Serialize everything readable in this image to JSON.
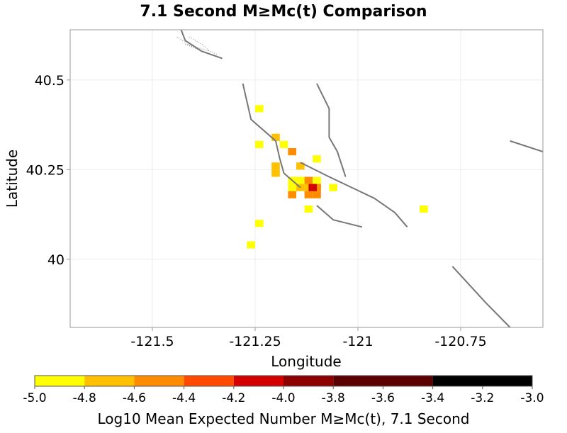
{
  "chart_data": {
    "type": "heatmap",
    "title": "7.1 Second M≥Mc(t) Comparison",
    "xlabel": "Longitude",
    "ylabel": "Latitude",
    "xlim": [
      -121.7,
      -120.55
    ],
    "ylim": [
      39.81,
      40.64
    ],
    "x_ticks": [
      -121.5,
      -121.25,
      -121,
      -120.75
    ],
    "x_tick_labels": [
      "-121.5",
      "-121.25",
      "-121",
      "-120.75"
    ],
    "y_ticks": [
      40,
      40.25,
      40.5
    ],
    "y_tick_labels": [
      "40",
      "40.25",
      "40.5"
    ],
    "grid": true,
    "cell_size_deg": 0.02,
    "colorbar": {
      "label": "Log10 Mean Expected Number M≥Mc(t), 7.1 Second",
      "min": -5.0,
      "max": -3.0,
      "ticks": [
        "-5.0",
        "-4.8",
        "-4.6",
        "-4.4",
        "-4.2",
        "-4.0",
        "-3.8",
        "-3.6",
        "-3.4",
        "-3.2",
        "-3.0"
      ],
      "colors": [
        "#ffff00",
        "#ffc000",
        "#ff8c00",
        "#ff4a00",
        "#d20000",
        "#8c0000",
        "#5a0000",
        "#000000"
      ],
      "bins": [
        [
          -5.0,
          -4.8
        ],
        [
          -4.8,
          -4.6
        ],
        [
          -4.6,
          -4.4
        ],
        [
          -4.4,
          -4.2
        ],
        [
          -4.2,
          -4.0
        ],
        [
          -4.0,
          -3.8
        ],
        [
          -3.8,
          -3.4
        ],
        [
          -3.4,
          -3.0
        ]
      ]
    },
    "cells": [
      {
        "lon": -121.24,
        "lat": 40.42,
        "value": -4.9
      },
      {
        "lon": -121.24,
        "lat": 40.32,
        "value": -4.9
      },
      {
        "lon": -121.2,
        "lat": 40.34,
        "value": -4.8
      },
      {
        "lon": -121.18,
        "lat": 40.32,
        "value": -4.9
      },
      {
        "lon": -121.16,
        "lat": 40.3,
        "value": -4.6
      },
      {
        "lon": -121.2,
        "lat": 40.26,
        "value": -4.8
      },
      {
        "lon": -121.2,
        "lat": 40.24,
        "value": -4.8
      },
      {
        "lon": -121.14,
        "lat": 40.26,
        "value": -4.7
      },
      {
        "lon": -121.1,
        "lat": 40.28,
        "value": -4.9
      },
      {
        "lon": -121.16,
        "lat": 40.22,
        "value": -4.9
      },
      {
        "lon": -121.14,
        "lat": 40.22,
        "value": -4.9
      },
      {
        "lon": -121.12,
        "lat": 40.22,
        "value": -4.5
      },
      {
        "lon": -121.1,
        "lat": 40.22,
        "value": -4.9
      },
      {
        "lon": -121.16,
        "lat": 40.2,
        "value": -4.9
      },
      {
        "lon": -121.14,
        "lat": 40.2,
        "value": -4.8
      },
      {
        "lon": -121.12,
        "lat": 40.2,
        "value": -4.8
      },
      {
        "lon": -121.1,
        "lat": 40.2,
        "value": -4.5
      },
      {
        "lon": -121.16,
        "lat": 40.18,
        "value": -4.6
      },
      {
        "lon": -121.12,
        "lat": 40.18,
        "value": -4.6
      },
      {
        "lon": -121.1,
        "lat": 40.2,
        "value": -4.6
      },
      {
        "lon": -121.1,
        "lat": 40.18,
        "value": -4.6
      },
      {
        "lon": -121.11,
        "lat": 40.2,
        "value": -4.1
      },
      {
        "lon": -121.12,
        "lat": 40.14,
        "value": -4.9
      },
      {
        "lon": -121.06,
        "lat": 40.2,
        "value": -4.9
      },
      {
        "lon": -120.84,
        "lat": 40.14,
        "value": -4.9
      },
      {
        "lon": -121.24,
        "lat": 40.1,
        "value": -4.9
      },
      {
        "lon": -121.26,
        "lat": 40.04,
        "value": -4.9
      }
    ],
    "faults": [
      [
        [
          -121.43,
          40.64
        ],
        [
          -121.42,
          40.61
        ],
        [
          -121.38,
          40.58
        ],
        [
          -121.33,
          40.56
        ]
      ],
      [
        [
          -121.28,
          40.49
        ],
        [
          -121.27,
          40.44
        ],
        [
          -121.26,
          40.39
        ],
        [
          -121.2,
          40.33
        ],
        [
          -121.19,
          40.28
        ],
        [
          -121.18,
          40.24
        ],
        [
          -121.14,
          40.2
        ]
      ],
      [
        [
          -121.1,
          40.49
        ],
        [
          -121.07,
          40.42
        ],
        [
          -121.07,
          40.34
        ],
        [
          -121.05,
          40.3
        ],
        [
          -121.03,
          40.23
        ]
      ],
      [
        [
          -121.14,
          40.27
        ],
        [
          -121.07,
          40.23
        ],
        [
          -120.96,
          40.17
        ],
        [
          -120.91,
          40.13
        ],
        [
          -120.88,
          40.09
        ]
      ],
      [
        [
          -121.1,
          40.15
        ],
        [
          -121.06,
          40.11
        ],
        [
          -120.99,
          40.09
        ]
      ],
      [
        [
          -120.63,
          40.33
        ],
        [
          -120.55,
          40.3
        ]
      ],
      [
        [
          -120.77,
          39.98
        ],
        [
          -120.69,
          39.88
        ],
        [
          -120.63,
          39.81
        ]
      ]
    ],
    "boundary": [
      [
        [
          -121.44,
          40.62
        ],
        [
          -121.4,
          40.59
        ],
        [
          -121.33,
          40.56
        ]
      ],
      [
        [
          -121.42,
          40.6
        ],
        [
          -121.36,
          40.58
        ]
      ],
      [
        [
          -121.42,
          40.6
        ],
        [
          -121.4,
          40.59
        ]
      ],
      [
        [
          -121.41,
          40.62
        ],
        [
          -121.38,
          40.6
        ],
        [
          -121.36,
          40.58
        ],
        [
          -121.34,
          40.57
        ]
      ]
    ]
  }
}
